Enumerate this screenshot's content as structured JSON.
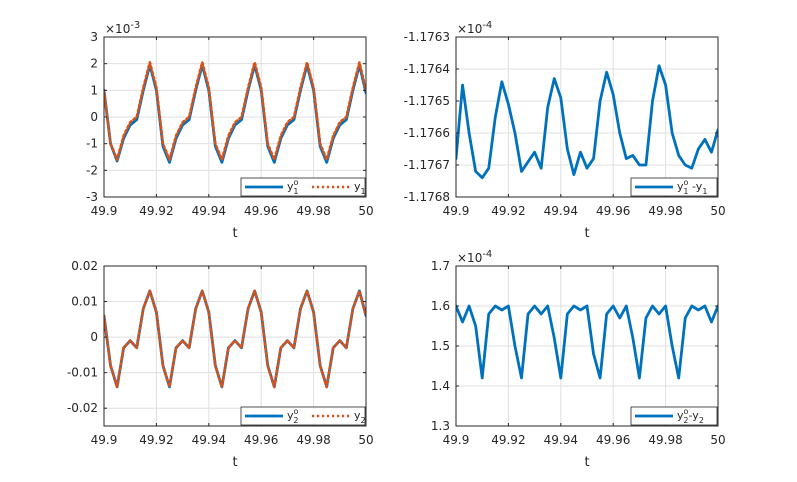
{
  "chart_data": [
    {
      "type": "line",
      "panel": "top-left",
      "xlabel": "t",
      "xlim": [
        49.9,
        50
      ],
      "ylim": [
        -3,
        3
      ],
      "y_exponent": "×10^-3",
      "x_ticks": [
        49.9,
        49.92,
        49.94,
        49.96,
        49.98,
        50
      ],
      "x_tick_labels": [
        "49.9",
        "49.92",
        "49.94",
        "49.96",
        "49.98",
        "50"
      ],
      "y_ticks": [
        -3,
        -2,
        -1,
        0,
        1,
        2,
        3
      ],
      "y_tick_labels": [
        "-3",
        "-2",
        "-1",
        "0",
        "1",
        "2",
        "3"
      ],
      "grid": true,
      "legend_position": "bottom-right",
      "series": [
        {
          "name": "y1o",
          "legend_main": "y",
          "legend_sup": "o",
          "legend_sub": "1",
          "color": "#0072BD",
          "style": "solid",
          "x": [
            49.9,
            49.9025,
            49.905,
            49.9075,
            49.91,
            49.9125,
            49.915,
            49.9175,
            49.92,
            49.9225,
            49.925,
            49.9275,
            49.93,
            49.9325,
            49.935,
            49.9375,
            49.94,
            49.9425,
            49.945,
            49.9475,
            49.95,
            49.9525,
            49.955,
            49.9575,
            49.96,
            49.9625,
            49.965,
            49.9675,
            49.97,
            49.9725,
            49.975,
            49.9775,
            49.98,
            49.9825,
            49.985,
            49.9875,
            49.99,
            49.9925,
            49.995,
            49.9975,
            50
          ],
          "y": [
            1.0,
            -1.0,
            -1.65,
            -0.8,
            -0.3,
            -0.1,
            1.0,
            1.95,
            1.0,
            -1.1,
            -1.7,
            -0.8,
            -0.3,
            -0.1,
            1.0,
            1.95,
            1.0,
            -1.1,
            -1.7,
            -0.8,
            -0.3,
            -0.1,
            1.0,
            1.95,
            1.0,
            -1.1,
            -1.7,
            -0.8,
            -0.3,
            -0.1,
            1.0,
            1.95,
            1.0,
            -1.1,
            -1.7,
            -0.8,
            -0.3,
            -0.1,
            1.0,
            1.95,
            0.9
          ]
        },
        {
          "name": "y1",
          "legend_main": "y",
          "legend_sup": "",
          "legend_sub": "1",
          "color": "#D95319",
          "style": "dotted",
          "x": [
            49.9,
            49.9025,
            49.905,
            49.9075,
            49.91,
            49.9125,
            49.915,
            49.9175,
            49.92,
            49.9225,
            49.925,
            49.9275,
            49.93,
            49.9325,
            49.935,
            49.9375,
            49.94,
            49.9425,
            49.945,
            49.9475,
            49.95,
            49.9525,
            49.955,
            49.9575,
            49.96,
            49.9625,
            49.965,
            49.9675,
            49.97,
            49.9725,
            49.975,
            49.9775,
            49.98,
            49.9825,
            49.985,
            49.9875,
            49.99,
            49.9925,
            49.995,
            49.9975,
            50
          ],
          "y": [
            1.0,
            -1.0,
            -1.6,
            -0.7,
            -0.2,
            0.0,
            1.1,
            2.05,
            1.1,
            -1.0,
            -1.6,
            -0.7,
            -0.2,
            0.0,
            1.1,
            2.05,
            1.1,
            -1.0,
            -1.6,
            -0.7,
            -0.2,
            0.0,
            1.1,
            2.05,
            1.1,
            -1.0,
            -1.6,
            -0.7,
            -0.2,
            0.0,
            1.1,
            2.05,
            1.1,
            -1.0,
            -1.6,
            -0.7,
            -0.2,
            0.0,
            1.1,
            2.05,
            1.0
          ]
        }
      ]
    },
    {
      "type": "line",
      "panel": "top-right",
      "xlabel": "t",
      "xlim": [
        49.9,
        50
      ],
      "ylim": [
        -1.1768,
        -1.1763
      ],
      "y_exponent": "×10^-4",
      "x_ticks": [
        49.9,
        49.92,
        49.94,
        49.96,
        49.98,
        50
      ],
      "x_tick_labels": [
        "49.9",
        "49.92",
        "49.94",
        "49.96",
        "49.98",
        "50"
      ],
      "y_ticks": [
        -1.1768,
        -1.1767,
        -1.1766,
        -1.1765,
        -1.1764,
        -1.1763
      ],
      "y_tick_labels": [
        "-1.1768",
        "-1.1767",
        "-1.1766",
        "-1.1765",
        "-1.1764",
        "-1.1763"
      ],
      "grid": true,
      "legend_position": "bottom-right",
      "series": [
        {
          "name": "y1o-y1",
          "legend_main": "y",
          "legend_sup": "o",
          "legend_sub": "1",
          "legend_rest": " -y",
          "legend_rest_sub": "1",
          "color": "#0072BD",
          "style": "solid",
          "x": [
            49.9,
            49.9025,
            49.905,
            49.9075,
            49.91,
            49.9125,
            49.915,
            49.9175,
            49.92,
            49.9225,
            49.925,
            49.9275,
            49.93,
            49.9325,
            49.935,
            49.9375,
            49.94,
            49.9425,
            49.945,
            49.9475,
            49.95,
            49.9525,
            49.955,
            49.9575,
            49.96,
            49.9625,
            49.965,
            49.9675,
            49.97,
            49.9725,
            49.975,
            49.9775,
            49.98,
            49.9825,
            49.985,
            49.9875,
            49.99,
            49.9925,
            49.995,
            49.9975,
            50
          ],
          "y": [
            -1.17668,
            -1.17645,
            -1.1766,
            -1.17672,
            -1.17674,
            -1.17671,
            -1.17655,
            -1.17644,
            -1.17651,
            -1.1766,
            -1.17672,
            -1.17669,
            -1.17666,
            -1.17671,
            -1.17652,
            -1.17643,
            -1.17649,
            -1.17665,
            -1.17673,
            -1.17666,
            -1.17671,
            -1.17668,
            -1.1765,
            -1.17641,
            -1.17648,
            -1.1766,
            -1.17668,
            -1.17667,
            -1.1767,
            -1.1767,
            -1.1765,
            -1.17639,
            -1.17645,
            -1.1766,
            -1.17667,
            -1.1767,
            -1.17671,
            -1.17665,
            -1.17662,
            -1.17666,
            -1.17659
          ]
        }
      ]
    },
    {
      "type": "line",
      "panel": "bottom-left",
      "xlabel": "t",
      "xlim": [
        49.9,
        50
      ],
      "ylim": [
        -0.025,
        0.02
      ],
      "y_exponent": "",
      "x_ticks": [
        49.9,
        49.92,
        49.94,
        49.96,
        49.98,
        50
      ],
      "x_tick_labels": [
        "49.9",
        "49.92",
        "49.94",
        "49.96",
        "49.98",
        "50"
      ],
      "y_ticks": [
        -0.02,
        -0.01,
        0,
        0.01,
        0.02
      ],
      "y_tick_labels": [
        "-0.02",
        "-0.01",
        "0",
        "0.01",
        "0.02"
      ],
      "grid": true,
      "legend_position": "bottom-right",
      "series": [
        {
          "name": "y2o",
          "legend_main": "y",
          "legend_sup": "o",
          "legend_sub": "2",
          "color": "#0072BD",
          "style": "solid",
          "x": [
            49.9,
            49.9025,
            49.905,
            49.9075,
            49.91,
            49.9125,
            49.915,
            49.9175,
            49.92,
            49.9225,
            49.925,
            49.9275,
            49.93,
            49.9325,
            49.935,
            49.9375,
            49.94,
            49.9425,
            49.945,
            49.9475,
            49.95,
            49.9525,
            49.955,
            49.9575,
            49.96,
            49.9625,
            49.965,
            49.9675,
            49.97,
            49.9725,
            49.975,
            49.9775,
            49.98,
            49.9825,
            49.985,
            49.9875,
            49.99,
            49.9925,
            49.995,
            49.9975,
            50
          ],
          "y": [
            0.006,
            -0.008,
            -0.014,
            -0.003,
            -0.001,
            -0.003,
            0.008,
            0.013,
            0.007,
            -0.008,
            -0.014,
            -0.003,
            -0.001,
            -0.003,
            0.008,
            0.013,
            0.007,
            -0.008,
            -0.014,
            -0.003,
            -0.001,
            -0.003,
            0.008,
            0.013,
            0.007,
            -0.008,
            -0.014,
            -0.003,
            -0.001,
            -0.003,
            0.008,
            0.013,
            0.007,
            -0.008,
            -0.014,
            -0.003,
            -0.001,
            -0.003,
            0.008,
            0.013,
            0.006
          ]
        },
        {
          "name": "y2",
          "legend_main": "y",
          "legend_sup": "",
          "legend_sub": "2",
          "color": "#D95319",
          "style": "dotted",
          "x": [
            49.9,
            49.9025,
            49.905,
            49.9075,
            49.91,
            49.9125,
            49.915,
            49.9175,
            49.92,
            49.9225,
            49.925,
            49.9275,
            49.93,
            49.9325,
            49.935,
            49.9375,
            49.94,
            49.9425,
            49.945,
            49.9475,
            49.95,
            49.9525,
            49.955,
            49.9575,
            49.96,
            49.9625,
            49.965,
            49.9675,
            49.97,
            49.9725,
            49.975,
            49.9775,
            49.98,
            49.9825,
            49.985,
            49.9875,
            49.99,
            49.9925,
            49.995,
            49.9975,
            50
          ],
          "y": [
            0.006,
            -0.008,
            -0.014,
            -0.003,
            -0.001,
            -0.003,
            0.008,
            0.013,
            0.007,
            -0.008,
            -0.014,
            -0.003,
            -0.001,
            -0.003,
            0.008,
            0.013,
            0.007,
            -0.008,
            -0.014,
            -0.003,
            -0.001,
            -0.003,
            0.008,
            0.013,
            0.007,
            -0.008,
            -0.014,
            -0.003,
            -0.001,
            -0.003,
            0.008,
            0.013,
            0.007,
            -0.008,
            -0.014,
            -0.003,
            -0.001,
            -0.003,
            0.008,
            0.013,
            0.006
          ]
        }
      ]
    },
    {
      "type": "line",
      "panel": "bottom-right",
      "xlabel": "t",
      "xlim": [
        49.9,
        50
      ],
      "ylim": [
        1.3,
        1.7
      ],
      "y_exponent": "×10^-4",
      "x_ticks": [
        49.9,
        49.92,
        49.94,
        49.96,
        49.98,
        50
      ],
      "x_tick_labels": [
        "49.9",
        "49.92",
        "49.94",
        "49.96",
        "49.98",
        "50"
      ],
      "y_ticks": [
        1.3,
        1.4,
        1.5,
        1.6,
        1.7
      ],
      "y_tick_labels": [
        "1.3",
        "1.4",
        "1.5",
        "1.6",
        "1.7"
      ],
      "grid": true,
      "legend_position": "bottom-right",
      "series": [
        {
          "name": "y2o-y2",
          "legend_main": "y",
          "legend_sup": "o",
          "legend_sub": "2",
          "legend_rest": "-y",
          "legend_rest_sub": "2",
          "color": "#0072BD",
          "style": "solid",
          "x": [
            49.9,
            49.9025,
            49.905,
            49.9075,
            49.91,
            49.9125,
            49.915,
            49.9175,
            49.92,
            49.9225,
            49.925,
            49.9275,
            49.93,
            49.9325,
            49.935,
            49.9375,
            49.94,
            49.9425,
            49.945,
            49.9475,
            49.95,
            49.9525,
            49.955,
            49.9575,
            49.96,
            49.9625,
            49.965,
            49.9675,
            49.97,
            49.9725,
            49.975,
            49.9775,
            49.98,
            49.9825,
            49.985,
            49.9875,
            49.99,
            49.9925,
            49.995,
            49.9975,
            50
          ],
          "y": [
            1.6,
            1.56,
            1.6,
            1.55,
            1.42,
            1.58,
            1.6,
            1.59,
            1.6,
            1.5,
            1.42,
            1.58,
            1.6,
            1.58,
            1.6,
            1.52,
            1.42,
            1.58,
            1.6,
            1.59,
            1.6,
            1.48,
            1.42,
            1.58,
            1.6,
            1.57,
            1.6,
            1.52,
            1.42,
            1.57,
            1.6,
            1.58,
            1.6,
            1.5,
            1.42,
            1.57,
            1.6,
            1.59,
            1.6,
            1.56,
            1.6
          ]
        }
      ]
    }
  ]
}
